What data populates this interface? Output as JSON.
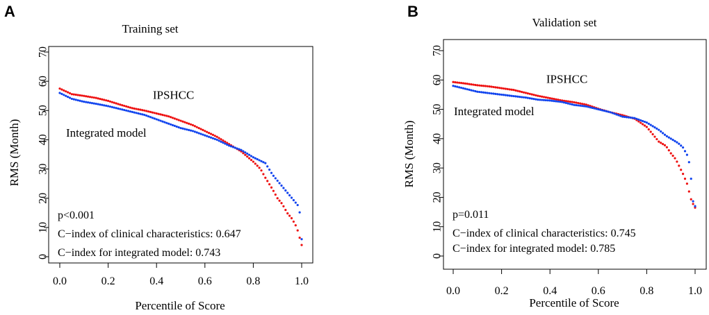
{
  "chart_data": [
    {
      "panel": "A",
      "type": "scatter",
      "title": "Training set",
      "xlabel": "Percentile of Score",
      "ylabel": "RMS (Month)",
      "xlim": [
        0.0,
        1.0
      ],
      "ylim": [
        0,
        70
      ],
      "x_ticks": [
        "0.0",
        "0.2",
        "0.4",
        "0.6",
        "0.8",
        "1.0"
      ],
      "y_ticks": [
        "0",
        "10",
        "20",
        "30",
        "40",
        "50",
        "60",
        "70"
      ],
      "series_labels": [
        {
          "name": "IPSHCC",
          "x": 0.47,
          "y": 54
        },
        {
          "name": "Integrated model",
          "x": 0.18,
          "y": 41
        }
      ],
      "annotations": [
        "p<0.001",
        "C−index of clinical characteristics: 0.647",
        "C−index for integrated model: 0.743"
      ],
      "series": [
        {
          "name": "IPSHCC",
          "color": "#ee1111",
          "points": [
            [
              0.0,
              57.5
            ],
            [
              0.05,
              55.6
            ],
            [
              0.1,
              55
            ],
            [
              0.15,
              54.3
            ],
            [
              0.2,
              53.3
            ],
            [
              0.25,
              52
            ],
            [
              0.3,
              50.8
            ],
            [
              0.35,
              50
            ],
            [
              0.4,
              49
            ],
            [
              0.45,
              48
            ],
            [
              0.5,
              46.5
            ],
            [
              0.55,
              45
            ],
            [
              0.6,
              43
            ],
            [
              0.65,
              41
            ],
            [
              0.7,
              38.5
            ],
            [
              0.75,
              36
            ],
            [
              0.8,
              32.5
            ],
            [
              0.83,
              30
            ],
            [
              0.85,
              27
            ],
            [
              0.88,
              23
            ],
            [
              0.9,
              20
            ],
            [
              0.92,
              18
            ],
            [
              0.94,
              15
            ],
            [
              0.96,
              13
            ],
            [
              0.98,
              10
            ],
            [
              0.99,
              7
            ],
            [
              1.0,
              4
            ]
          ]
        },
        {
          "name": "Integrated model",
          "color": "#1144ee",
          "points": [
            [
              0.0,
              56
            ],
            [
              0.05,
              54
            ],
            [
              0.1,
              53
            ],
            [
              0.15,
              52.3
            ],
            [
              0.2,
              51.5
            ],
            [
              0.25,
              50.5
            ],
            [
              0.3,
              49.5
            ],
            [
              0.35,
              48.5
            ],
            [
              0.4,
              47
            ],
            [
              0.45,
              45.5
            ],
            [
              0.5,
              44
            ],
            [
              0.55,
              43
            ],
            [
              0.6,
              41.5
            ],
            [
              0.65,
              40
            ],
            [
              0.7,
              38
            ],
            [
              0.75,
              36.5
            ],
            [
              0.8,
              34
            ],
            [
              0.85,
              32
            ],
            [
              0.88,
              28
            ],
            [
              0.9,
              26
            ],
            [
              0.92,
              24
            ],
            [
              0.95,
              21
            ],
            [
              0.97,
              19
            ],
            [
              0.99,
              17
            ],
            [
              1.0,
              6
            ]
          ]
        }
      ]
    },
    {
      "panel": "B",
      "type": "scatter",
      "title": "Validation set",
      "xlabel": "Percentile of Score",
      "ylabel": "RMS (Month)",
      "xlim": [
        0.0,
        1.0
      ],
      "ylim": [
        0,
        70
      ],
      "x_ticks": [
        "0.0",
        "0.2",
        "0.4",
        "0.6",
        "0.8",
        "1.0"
      ],
      "y_ticks": [
        "0",
        "10",
        "20",
        "30",
        "40",
        "50",
        "60",
        "70"
      ],
      "series_labels": [
        {
          "name": "IPSHCC",
          "x": 0.47,
          "y": 59
        },
        {
          "name": "Integrated model",
          "x": 0.18,
          "y": 48
        }
      ],
      "annotations": [
        "p=0.011",
        "C−index of clinical characteristics: 0.745",
        "C−index for integrated model: 0.785"
      ],
      "series": [
        {
          "name": "IPSHCC",
          "color": "#ee1111",
          "points": [
            [
              0.0,
              59.3
            ],
            [
              0.05,
              58.8
            ],
            [
              0.1,
              58.2
            ],
            [
              0.15,
              57.8
            ],
            [
              0.2,
              57.2
            ],
            [
              0.25,
              56.6
            ],
            [
              0.3,
              55.6
            ],
            [
              0.35,
              54.6
            ],
            [
              0.4,
              53.8
            ],
            [
              0.45,
              53
            ],
            [
              0.5,
              52.4
            ],
            [
              0.55,
              51.6
            ],
            [
              0.6,
              50.2
            ],
            [
              0.65,
              49
            ],
            [
              0.7,
              48
            ],
            [
              0.75,
              46.8
            ],
            [
              0.8,
              44
            ],
            [
              0.83,
              41
            ],
            [
              0.85,
              39
            ],
            [
              0.88,
              37.5
            ],
            [
              0.9,
              35
            ],
            [
              0.92,
              33
            ],
            [
              0.95,
              28
            ],
            [
              0.97,
              24
            ],
            [
              0.98,
              20
            ],
            [
              0.99,
              18
            ],
            [
              1.0,
              16.5
            ]
          ]
        },
        {
          "name": "Integrated model",
          "color": "#1144ee",
          "points": [
            [
              0.0,
              58
            ],
            [
              0.05,
              57
            ],
            [
              0.1,
              56
            ],
            [
              0.15,
              55.5
            ],
            [
              0.2,
              55
            ],
            [
              0.25,
              54.5
            ],
            [
              0.3,
              54
            ],
            [
              0.35,
              53.3
            ],
            [
              0.4,
              53
            ],
            [
              0.45,
              52.5
            ],
            [
              0.5,
              51.5
            ],
            [
              0.55,
              51
            ],
            [
              0.6,
              50
            ],
            [
              0.65,
              49
            ],
            [
              0.7,
              47.5
            ],
            [
              0.75,
              47
            ],
            [
              0.8,
              45.5
            ],
            [
              0.85,
              43
            ],
            [
              0.88,
              41
            ],
            [
              0.9,
              40
            ],
            [
              0.93,
              38.5
            ],
            [
              0.95,
              37
            ],
            [
              0.97,
              34
            ],
            [
              0.98,
              30
            ],
            [
              0.99,
              19
            ],
            [
              1.0,
              17
            ]
          ]
        }
      ]
    }
  ]
}
